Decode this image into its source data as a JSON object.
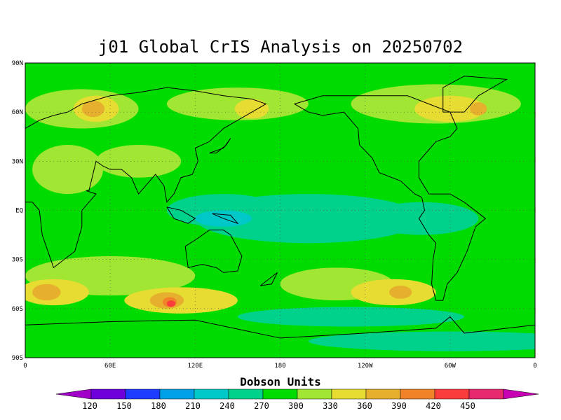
{
  "title": "j01 Global CrIS Analysis on 20250702",
  "colorbar": {
    "title": "Dobson Units",
    "levels": [
      "120",
      "150",
      "180",
      "210",
      "240",
      "270",
      "300",
      "330",
      "360",
      "390",
      "420",
      "450"
    ],
    "colors": [
      "#a000c8",
      "#6e00dc",
      "#1e3cff",
      "#00a0e6",
      "#00c8c8",
      "#00d28c",
      "#00dc00",
      "#a0e632",
      "#e6dc32",
      "#e6af2d",
      "#f08228",
      "#fa3c3c",
      "#e6286e",
      "#c800b4"
    ]
  },
  "axes": {
    "lat_labels": [
      "90N",
      "60N",
      "30N",
      "EQ",
      "30S",
      "60S",
      "90S"
    ],
    "lon_labels": [
      "0",
      "60E",
      "120E",
      "180",
      "120W",
      "60W",
      "0"
    ]
  },
  "map": {
    "background_color": "#00dc00",
    "ozone_fields": [
      {
        "color": "#a0e632",
        "lon": 40,
        "lat": 62,
        "rx": 40,
        "ry": 12
      },
      {
        "color": "#e6dc32",
        "lon": 50,
        "lat": 62,
        "rx": 16,
        "ry": 8
      },
      {
        "color": "#e6af2d",
        "lon": 48,
        "lat": 62,
        "rx": 8,
        "ry": 5
      },
      {
        "color": "#a0e632",
        "lon": 150,
        "lat": 65,
        "rx": 50,
        "ry": 10
      },
      {
        "color": "#e6dc32",
        "lon": 160,
        "lat": 62,
        "rx": 12,
        "ry": 6
      },
      {
        "color": "#a0e632",
        "lon": 290,
        "lat": 65,
        "rx": 60,
        "ry": 12
      },
      {
        "color": "#e6dc32",
        "lon": 300,
        "lat": 62,
        "rx": 25,
        "ry": 8
      },
      {
        "color": "#e6af2d",
        "lon": 320,
        "lat": 62,
        "rx": 6,
        "ry": 4
      },
      {
        "color": "#a0e632",
        "lon": 80,
        "lat": 30,
        "rx": 30,
        "ry": 10
      },
      {
        "color": "#a0e632",
        "lon": 30,
        "lat": 25,
        "rx": 25,
        "ry": 15
      },
      {
        "color": "#00d28c",
        "lon": 200,
        "lat": -5,
        "rx": 80,
        "ry": 15
      },
      {
        "color": "#00d28c",
        "lon": 140,
        "lat": 0,
        "rx": 40,
        "ry": 10
      },
      {
        "color": "#00c8c8",
        "lon": 140,
        "lat": -5,
        "rx": 20,
        "ry": 5
      },
      {
        "color": "#00d28c",
        "lon": 280,
        "lat": -5,
        "rx": 40,
        "ry": 10
      },
      {
        "color": "#a0e632",
        "lon": 60,
        "lat": -40,
        "rx": 60,
        "ry": 12
      },
      {
        "color": "#e6dc32",
        "lon": 110,
        "lat": -55,
        "rx": 40,
        "ry": 8
      },
      {
        "color": "#e6af2d",
        "lon": 100,
        "lat": -55,
        "rx": 12,
        "ry": 5
      },
      {
        "color": "#f08228",
        "lon": 102,
        "lat": -56,
        "rx": 5,
        "ry": 3
      },
      {
        "color": "#fa3c3c",
        "lon": 103,
        "lat": -57,
        "rx": 3,
        "ry": 2
      },
      {
        "color": "#e6dc32",
        "lon": 20,
        "lat": -50,
        "rx": 25,
        "ry": 8
      },
      {
        "color": "#e6af2d",
        "lon": 15,
        "lat": -50,
        "rx": 10,
        "ry": 5
      },
      {
        "color": "#a0e632",
        "lon": 220,
        "lat": -45,
        "rx": 40,
        "ry": 10
      },
      {
        "color": "#e6dc32",
        "lon": 260,
        "lat": -50,
        "rx": 30,
        "ry": 8
      },
      {
        "color": "#e6af2d",
        "lon": 265,
        "lat": -50,
        "rx": 8,
        "ry": 4
      },
      {
        "color": "#00d28c",
        "lon": 230,
        "lat": -65,
        "rx": 80,
        "ry": 6
      },
      {
        "color": "#00d28c",
        "lon": 300,
        "lat": -80,
        "rx": 100,
        "ry": 6
      }
    ],
    "land_color": "none",
    "coast_color": "#000000"
  }
}
